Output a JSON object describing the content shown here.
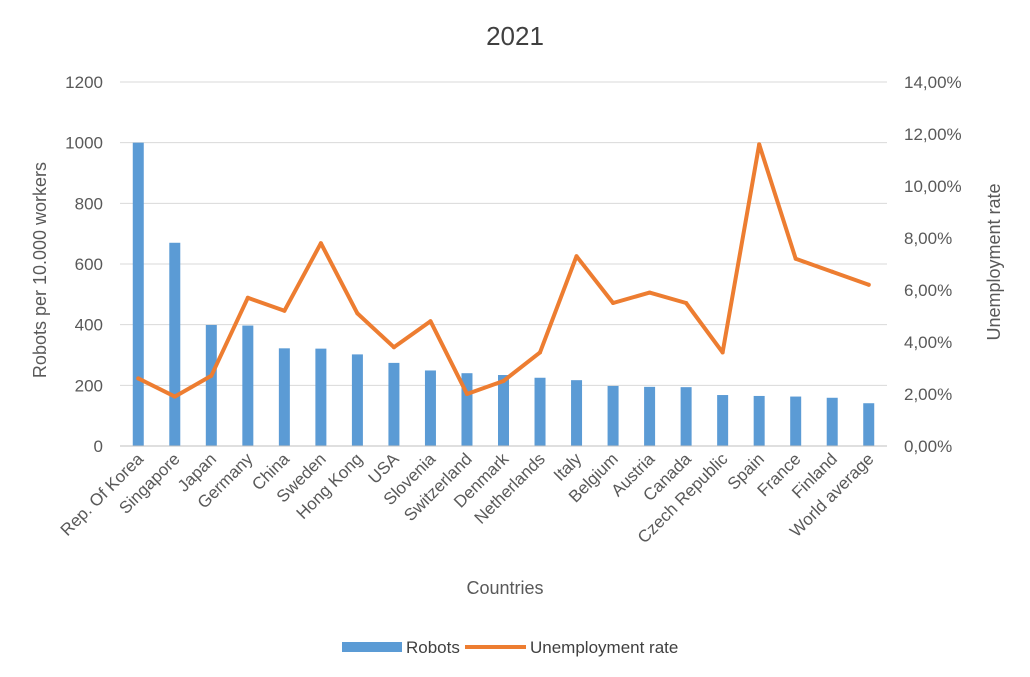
{
  "chart_data": {
    "type": "bar",
    "title": "2021",
    "xlabel": "Countries",
    "ylabel": "Robots per 10.000 workers",
    "y2label": "Unemployment rate",
    "categories": [
      "Rep. Of Korea",
      "Singapore",
      "Japan",
      "Germany",
      "China",
      "Sweden",
      "Hong Kong",
      "USA",
      "Slovenia",
      "Switzerland",
      "Denmark",
      "Netherlands",
      "Italy",
      "Belgium",
      "Austria",
      "Canada",
      "Czech Republic",
      "Spain",
      "France",
      "Finland",
      "World average"
    ],
    "series": [
      {
        "name": "Robots",
        "type": "bar",
        "axis": "left",
        "color": "#5b9bd5",
        "values": [
          1000,
          670,
          399,
          397,
          322,
          321,
          302,
          274,
          249,
          240,
          234,
          225,
          217,
          198,
          195,
          194,
          168,
          165,
          163,
          159,
          141
        ]
      },
      {
        "name": "Unemployment rate",
        "type": "line",
        "axis": "right",
        "color": "#ed7d31",
        "values": [
          2.6,
          1.9,
          2.7,
          5.7,
          5.2,
          7.8,
          5.1,
          3.8,
          4.8,
          2.0,
          2.5,
          3.6,
          7.3,
          5.5,
          5.9,
          5.5,
          3.6,
          11.6,
          7.2,
          6.7,
          6.2
        ]
      }
    ],
    "ylim": [
      0,
      1200
    ],
    "yticks": [
      0,
      200,
      400,
      600,
      800,
      1000,
      1200
    ],
    "ytick_labels": [
      "0",
      "200",
      "400",
      "600",
      "800",
      "1000",
      "1200"
    ],
    "y2lim": [
      0,
      14
    ],
    "y2ticks": [
      0,
      2,
      4,
      6,
      8,
      10,
      12,
      14
    ],
    "y2tick_labels": [
      "0,00%",
      "2,00%",
      "4,00%",
      "6,00%",
      "8,00%",
      "10,00%",
      "12,00%",
      "14,00%"
    ],
    "grid": true,
    "legend_position": "bottom"
  }
}
